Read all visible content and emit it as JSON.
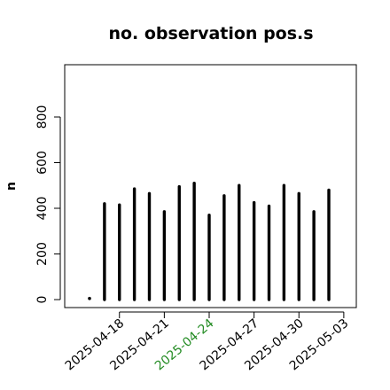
{
  "chart_data": {
    "type": "bar",
    "title": "no. observation pos.s",
    "xlabel": "",
    "ylabel": "n",
    "ylim": [
      -50,
      1000
    ],
    "y_ticks": [
      0,
      200,
      400,
      600,
      800
    ],
    "x": [
      "2025-04-16",
      "2025-04-17",
      "2025-04-18",
      "2025-04-19",
      "2025-04-20",
      "2025-04-21",
      "2025-04-22",
      "2025-04-23",
      "2025-04-24",
      "2025-04-25",
      "2025-04-26",
      "2025-04-27",
      "2025-04-28",
      "2025-04-29",
      "2025-04-30",
      "2025-05-01",
      "2025-05-02",
      "2025-05-03"
    ],
    "values": [
      5,
      420,
      415,
      485,
      465,
      385,
      495,
      510,
      370,
      455,
      500,
      425,
      410,
      500,
      465,
      385,
      480,
      null
    ],
    "x_ticks": [
      {
        "label": "2025-04-18",
        "color": "#000000"
      },
      {
        "label": "2025-04-21",
        "color": "#000000"
      },
      {
        "label": "2025-04-24",
        "color": "#228B22"
      },
      {
        "label": "2025-04-27",
        "color": "#000000"
      },
      {
        "label": "2025-04-30",
        "color": "#000000"
      },
      {
        "label": "2025-05-03",
        "color": "#000000"
      }
    ],
    "grid": false,
    "bar_color": "#000000"
  }
}
